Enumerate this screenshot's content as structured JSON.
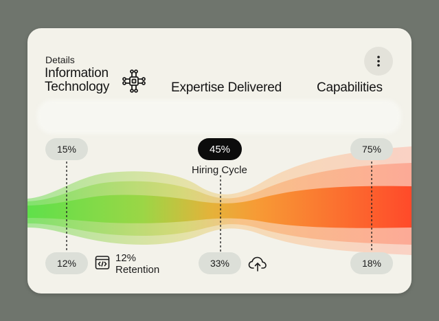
{
  "card": {
    "details_label": "Details",
    "title_line1": "Information",
    "title_line2": "Technology",
    "title_icon": "circuit-chip-icon",
    "heading_expertise": "Expertise Delivered",
    "heading_capabilities": "Capabilities",
    "menu_icon": "more-vertical-icon"
  },
  "markers": {
    "left_top": "15%",
    "left_bottom": "12%",
    "middle_top": "45%",
    "middle_caption": "Hiring Cycle",
    "middle_bottom": "33%",
    "right_top": "75%",
    "right_bottom": "18%"
  },
  "stats": {
    "retention_value": "12%",
    "retention_label": "Retention",
    "retention_icon": "code-window-icon",
    "upload_icon": "cloud-upload-icon"
  },
  "colors": {
    "background": "#6f756d",
    "card": "#f3f2ea",
    "band_start": "#5fe04a",
    "band_mid": "#f7a23a",
    "band_end": "#ff4a2a",
    "pill": "#dcdfd8",
    "pill_active": "#0c0c0c"
  }
}
